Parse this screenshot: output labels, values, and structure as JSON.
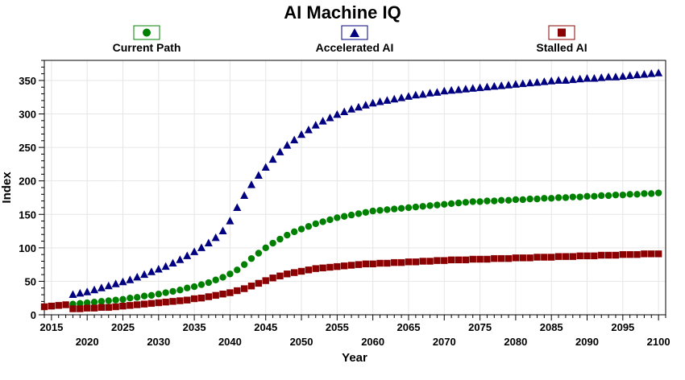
{
  "chart_data": {
    "type": "scatter",
    "title": "AI Machine IQ",
    "xlabel": "Year",
    "ylabel": "Index",
    "xlim": [
      2014,
      2101
    ],
    "ylim": [
      0,
      380
    ],
    "x_ticks_row1": [
      2015,
      2025,
      2035,
      2045,
      2055,
      2065,
      2075,
      2085,
      2095
    ],
    "x_ticks_row2": [
      2020,
      2030,
      2040,
      2050,
      2060,
      2070,
      2080,
      2090,
      2100
    ],
    "y_ticks": [
      0,
      50,
      100,
      150,
      200,
      250,
      300,
      350
    ],
    "grid": true,
    "legend_position": "top",
    "series": [
      {
        "name": "Current Path",
        "marker": "circle",
        "color": "#008000",
        "x": [
          2018,
          2019,
          2020,
          2021,
          2022,
          2023,
          2024,
          2025,
          2026,
          2027,
          2028,
          2029,
          2030,
          2031,
          2032,
          2033,
          2034,
          2035,
          2036,
          2037,
          2038,
          2039,
          2040,
          2041,
          2042,
          2043,
          2044,
          2045,
          2046,
          2047,
          2048,
          2049,
          2050,
          2051,
          2052,
          2053,
          2054,
          2055,
          2056,
          2057,
          2058,
          2059,
          2060,
          2061,
          2062,
          2063,
          2064,
          2065,
          2066,
          2067,
          2068,
          2069,
          2070,
          2071,
          2072,
          2073,
          2074,
          2075,
          2076,
          2077,
          2078,
          2079,
          2080,
          2081,
          2082,
          2083,
          2084,
          2085,
          2086,
          2087,
          2088,
          2089,
          2090,
          2091,
          2092,
          2093,
          2094,
          2095,
          2096,
          2097,
          2098,
          2099,
          2100
        ],
        "y": [
          16,
          17,
          18,
          19,
          20,
          21,
          22,
          23,
          25,
          26,
          28,
          29,
          31,
          33,
          35,
          37,
          40,
          42,
          45,
          48,
          52,
          56,
          61,
          67,
          75,
          84,
          92,
          100,
          107,
          113,
          119,
          124,
          128,
          132,
          136,
          139,
          142,
          145,
          147,
          149,
          151,
          153,
          155,
          156,
          157,
          158,
          159,
          160,
          161,
          162,
          163,
          164,
          165,
          166,
          167,
          168,
          169,
          169,
          170,
          170,
          171,
          171,
          172,
          172,
          173,
          173,
          174,
          174,
          175,
          175,
          176,
          176,
          177,
          177,
          178,
          178,
          179,
          179,
          180,
          180,
          181,
          181,
          182
        ]
      },
      {
        "name": "Accelerated AI",
        "marker": "triangle",
        "color": "#000080",
        "x": [
          2018,
          2019,
          2020,
          2021,
          2022,
          2023,
          2024,
          2025,
          2026,
          2027,
          2028,
          2029,
          2030,
          2031,
          2032,
          2033,
          2034,
          2035,
          2036,
          2037,
          2038,
          2039,
          2040,
          2041,
          2042,
          2043,
          2044,
          2045,
          2046,
          2047,
          2048,
          2049,
          2050,
          2051,
          2052,
          2053,
          2054,
          2055,
          2056,
          2057,
          2058,
          2059,
          2060,
          2061,
          2062,
          2063,
          2064,
          2065,
          2066,
          2067,
          2068,
          2069,
          2070,
          2071,
          2072,
          2073,
          2074,
          2075,
          2076,
          2077,
          2078,
          2079,
          2080,
          2081,
          2082,
          2083,
          2084,
          2085,
          2086,
          2087,
          2088,
          2089,
          2090,
          2091,
          2092,
          2093,
          2094,
          2095,
          2096,
          2097,
          2098,
          2099,
          2100
        ],
        "y": [
          30,
          32,
          34,
          37,
          40,
          43,
          46,
          49,
          52,
          56,
          60,
          64,
          68,
          72,
          77,
          82,
          88,
          94,
          100,
          107,
          115,
          125,
          140,
          160,
          178,
          194,
          208,
          220,
          232,
          243,
          253,
          261,
          269,
          276,
          283,
          289,
          294,
          299,
          303,
          307,
          310,
          313,
          316,
          318,
          320,
          322,
          324,
          326,
          328,
          329,
          331,
          332,
          334,
          335,
          336,
          337,
          338,
          339,
          340,
          341,
          342,
          343,
          344,
          345,
          346,
          347,
          348,
          349,
          350,
          350,
          351,
          352,
          353,
          353,
          354,
          355,
          355,
          356,
          357,
          358,
          359,
          360,
          361
        ]
      },
      {
        "name": "Stalled AI",
        "marker": "square",
        "color": "#8b0000",
        "x": [
          2014,
          2015,
          2016,
          2017,
          2018,
          2019,
          2020,
          2021,
          2022,
          2023,
          2024,
          2025,
          2026,
          2027,
          2028,
          2029,
          2030,
          2031,
          2032,
          2033,
          2034,
          2035,
          2036,
          2037,
          2038,
          2039,
          2040,
          2041,
          2042,
          2043,
          2044,
          2045,
          2046,
          2047,
          2048,
          2049,
          2050,
          2051,
          2052,
          2053,
          2054,
          2055,
          2056,
          2057,
          2058,
          2059,
          2060,
          2061,
          2062,
          2063,
          2064,
          2065,
          2066,
          2067,
          2068,
          2069,
          2070,
          2071,
          2072,
          2073,
          2074,
          2075,
          2076,
          2077,
          2078,
          2079,
          2080,
          2081,
          2082,
          2083,
          2084,
          2085,
          2086,
          2087,
          2088,
          2089,
          2090,
          2091,
          2092,
          2093,
          2094,
          2095,
          2096,
          2097,
          2098,
          2099,
          2100
        ],
        "y": [
          12,
          13,
          14,
          15,
          9,
          9,
          10,
          10,
          11,
          11,
          12,
          13,
          14,
          15,
          16,
          17,
          18,
          19,
          20,
          21,
          22,
          24,
          25,
          27,
          29,
          31,
          33,
          36,
          39,
          43,
          47,
          51,
          55,
          58,
          61,
          63,
          65,
          67,
          69,
          70,
          71,
          72,
          73,
          74,
          75,
          76,
          76,
          77,
          77,
          78,
          78,
          79,
          79,
          80,
          80,
          81,
          81,
          82,
          82,
          82,
          83,
          83,
          83,
          84,
          84,
          84,
          85,
          85,
          85,
          86,
          86,
          86,
          87,
          87,
          87,
          88,
          88,
          88,
          89,
          89,
          89,
          90,
          90,
          90,
          91,
          91,
          91
        ]
      }
    ]
  }
}
